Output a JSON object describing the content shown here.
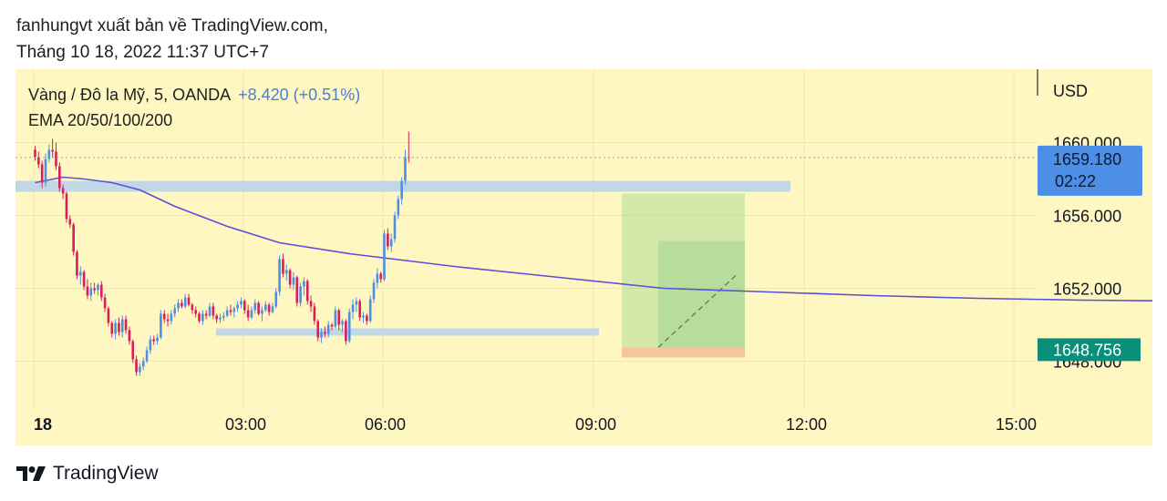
{
  "header": {
    "publisher_line": "fanhungvt xuất bản về TradingView.com,",
    "date_line": "Tháng 10 18, 2022 11:37 UTC+7"
  },
  "legend": {
    "symbol_line": "Vàng / Đô la Mỹ, 5, OANDA",
    "change": "+8.420 (+0.51%)",
    "indicator": "EMA 20/50/100/200"
  },
  "footer": {
    "brand": "TradingView"
  },
  "colors": {
    "background": "#fff7c2",
    "up": "#4d8fe6",
    "down": "#d81e5b",
    "ema": "#5b4fd6",
    "zone": "#b9d3ea",
    "price_tag": "#4d8fe6",
    "last_tag": "#0a8f7a",
    "target": "#9fd48f",
    "stop": "#f6c29a"
  },
  "chart_data": {
    "type": "candlestick",
    "symbol": "Vàng / Đô la Mỹ",
    "interval": "5",
    "currency": "USD",
    "x_tick_labels": [
      "18",
      "03:00",
      "06:00",
      "09:00",
      "12:00",
      "15:00"
    ],
    "y_tick_labels": [
      "1660.000",
      "1656.000",
      "1652.000",
      "1648.000"
    ],
    "ylim": [
      1644.5,
      1663.5
    ],
    "price_labels": {
      "current": "1659.180",
      "countdown": "02:22",
      "marker": "1648.756"
    },
    "candles_5m_from_00_00": [
      [
        1659.6,
        1659.8,
        1659.0,
        1659.2
      ],
      [
        1659.2,
        1659.5,
        1658.6,
        1658.8
      ],
      [
        1658.8,
        1659.0,
        1657.5,
        1657.8
      ],
      [
        1657.8,
        1659.4,
        1657.6,
        1659.1
      ],
      [
        1659.1,
        1659.9,
        1658.9,
        1659.6
      ],
      [
        1659.6,
        1660.2,
        1659.2,
        1659.5
      ],
      [
        1659.5,
        1660.0,
        1658.5,
        1658.7
      ],
      [
        1658.7,
        1658.9,
        1657.3,
        1657.5
      ],
      [
        1657.5,
        1657.7,
        1656.9,
        1657.2
      ],
      [
        1657.2,
        1657.3,
        1655.6,
        1655.8
      ],
      [
        1655.8,
        1656.0,
        1655.3,
        1655.5
      ],
      [
        1655.5,
        1655.6,
        1653.8,
        1654.0
      ],
      [
        1654.0,
        1654.1,
        1652.5,
        1652.7
      ],
      [
        1652.7,
        1653.2,
        1652.2,
        1652.9
      ],
      [
        1652.9,
        1653.0,
        1651.9,
        1652.1
      ],
      [
        1652.1,
        1652.5,
        1651.4,
        1651.6
      ],
      [
        1651.6,
        1652.3,
        1651.3,
        1652.0
      ],
      [
        1652.0,
        1652.3,
        1651.7,
        1651.9
      ],
      [
        1651.9,
        1652.3,
        1651.6,
        1652.2
      ],
      [
        1652.2,
        1652.4,
        1651.3,
        1651.5
      ],
      [
        1651.5,
        1651.7,
        1650.7,
        1650.9
      ],
      [
        1650.9,
        1651.0,
        1649.9,
        1650.1
      ],
      [
        1650.1,
        1650.2,
        1649.3,
        1649.5
      ],
      [
        1649.5,
        1650.3,
        1649.2,
        1650.1
      ],
      [
        1650.1,
        1650.4,
        1649.4,
        1649.6
      ],
      [
        1649.6,
        1650.5,
        1649.3,
        1650.3
      ],
      [
        1650.3,
        1650.5,
        1649.5,
        1649.7
      ],
      [
        1649.7,
        1649.9,
        1648.9,
        1649.1
      ],
      [
        1649.1,
        1649.2,
        1647.9,
        1648.1
      ],
      [
        1648.1,
        1648.3,
        1647.2,
        1647.4
      ],
      [
        1647.4,
        1647.9,
        1647.2,
        1647.7
      ],
      [
        1647.7,
        1648.2,
        1647.5,
        1648.0
      ],
      [
        1648.0,
        1648.8,
        1647.9,
        1648.6
      ],
      [
        1648.6,
        1649.4,
        1648.4,
        1649.2
      ],
      [
        1649.2,
        1649.4,
        1648.9,
        1649.1
      ],
      [
        1649.1,
        1649.5,
        1648.9,
        1649.3
      ],
      [
        1649.3,
        1650.8,
        1649.2,
        1650.6
      ],
      [
        1650.6,
        1650.8,
        1650.1,
        1650.3
      ],
      [
        1650.3,
        1650.6,
        1649.9,
        1650.2
      ],
      [
        1650.2,
        1650.8,
        1650.0,
        1650.6
      ],
      [
        1650.6,
        1651.1,
        1650.4,
        1650.9
      ],
      [
        1650.9,
        1651.4,
        1650.7,
        1651.2
      ],
      [
        1651.2,
        1651.4,
        1650.9,
        1651.0
      ],
      [
        1651.0,
        1651.7,
        1650.9,
        1651.5
      ],
      [
        1651.5,
        1651.7,
        1651.0,
        1651.1
      ],
      [
        1651.1,
        1651.2,
        1650.6,
        1650.8
      ],
      [
        1650.8,
        1651.0,
        1650.4,
        1650.6
      ],
      [
        1650.6,
        1650.7,
        1650.1,
        1650.2
      ],
      [
        1650.2,
        1650.8,
        1650.0,
        1650.6
      ],
      [
        1650.6,
        1650.8,
        1650.3,
        1650.5
      ],
      [
        1650.5,
        1651.2,
        1650.4,
        1651.0
      ],
      [
        1651.0,
        1651.2,
        1650.3,
        1650.5
      ],
      [
        1650.5,
        1650.6,
        1650.1,
        1650.3
      ],
      [
        1650.3,
        1650.6,
        1650.1,
        1650.4
      ],
      [
        1650.4,
        1650.7,
        1650.2,
        1650.5
      ],
      [
        1650.5,
        1651.0,
        1650.4,
        1650.8
      ],
      [
        1650.8,
        1651.1,
        1650.5,
        1650.7
      ],
      [
        1650.7,
        1651.0,
        1650.4,
        1650.9
      ],
      [
        1650.9,
        1651.3,
        1650.7,
        1651.1
      ],
      [
        1651.1,
        1651.5,
        1650.9,
        1651.3
      ],
      [
        1651.3,
        1651.4,
        1650.6,
        1650.8
      ],
      [
        1650.8,
        1651.1,
        1650.2,
        1650.4
      ],
      [
        1650.4,
        1651.0,
        1650.3,
        1650.8
      ],
      [
        1650.8,
        1651.4,
        1650.6,
        1651.2
      ],
      [
        1651.2,
        1651.3,
        1650.5,
        1650.6
      ],
      [
        1650.6,
        1651.0,
        1650.2,
        1650.8
      ],
      [
        1650.8,
        1651.3,
        1650.7,
        1651.1
      ],
      [
        1651.1,
        1651.2,
        1650.5,
        1650.7
      ],
      [
        1650.7,
        1651.2,
        1650.6,
        1651.0
      ],
      [
        1651.0,
        1652.0,
        1650.9,
        1651.8
      ],
      [
        1651.8,
        1653.8,
        1651.6,
        1653.6
      ],
      [
        1653.6,
        1653.9,
        1652.6,
        1652.8
      ],
      [
        1652.8,
        1653.3,
        1652.4,
        1653.0
      ],
      [
        1653.0,
        1653.1,
        1652.0,
        1652.2
      ],
      [
        1652.2,
        1652.9,
        1651.9,
        1652.6
      ],
      [
        1652.6,
        1652.7,
        1651.0,
        1651.2
      ],
      [
        1651.2,
        1652.3,
        1651.0,
        1652.1
      ],
      [
        1652.1,
        1652.6,
        1651.6,
        1652.4
      ],
      [
        1652.4,
        1652.5,
        1651.1,
        1651.3
      ],
      [
        1651.3,
        1651.6,
        1650.7,
        1651.0
      ],
      [
        1651.0,
        1651.2,
        1650.0,
        1650.2
      ],
      [
        1650.2,
        1650.3,
        1649.1,
        1649.3
      ],
      [
        1649.3,
        1649.8,
        1649.0,
        1649.6
      ],
      [
        1649.6,
        1649.9,
        1649.3,
        1649.5
      ],
      [
        1649.5,
        1650.2,
        1649.3,
        1650.0
      ],
      [
        1650.0,
        1650.1,
        1649.7,
        1649.9
      ],
      [
        1649.9,
        1651.0,
        1649.8,
        1650.8
      ],
      [
        1650.8,
        1650.9,
        1649.7,
        1650.0
      ],
      [
        1650.0,
        1650.3,
        1649.6,
        1650.2
      ],
      [
        1650.2,
        1650.3,
        1648.9,
        1649.1
      ],
      [
        1649.1,
        1650.9,
        1649.0,
        1650.7
      ],
      [
        1650.7,
        1651.4,
        1650.3,
        1651.1
      ],
      [
        1651.1,
        1651.5,
        1650.7,
        1651.3
      ],
      [
        1651.3,
        1651.4,
        1650.2,
        1650.4
      ],
      [
        1650.4,
        1650.7,
        1650.1,
        1650.5
      ],
      [
        1650.5,
        1650.6,
        1650.0,
        1650.2
      ],
      [
        1650.2,
        1651.6,
        1650.1,
        1651.4
      ],
      [
        1651.4,
        1652.5,
        1651.2,
        1652.3
      ],
      [
        1652.3,
        1653.1,
        1652.0,
        1652.8
      ],
      [
        1652.8,
        1652.9,
        1652.3,
        1652.5
      ],
      [
        1652.5,
        1655.2,
        1652.4,
        1655.0
      ],
      [
        1655.0,
        1655.3,
        1654.1,
        1654.3
      ],
      [
        1654.3,
        1655.0,
        1654.0,
        1654.7
      ],
      [
        1654.7,
        1656.2,
        1654.5,
        1656.0
      ],
      [
        1656.0,
        1657.1,
        1655.8,
        1656.9
      ],
      [
        1656.9,
        1658.1,
        1656.6,
        1657.9
      ],
      [
        1657.9,
        1659.6,
        1657.7,
        1659.2
      ],
      [
        1659.2,
        1660.6,
        1658.9,
        1659.18
      ]
    ],
    "ema": [
      [
        0,
        1657.8
      ],
      [
        8,
        1658.1
      ],
      [
        14,
        1658.0
      ],
      [
        22,
        1657.8
      ],
      [
        30,
        1657.4
      ],
      [
        40,
        1656.5
      ],
      [
        55,
        1655.4
      ],
      [
        70,
        1654.5
      ],
      [
        90,
        1653.9
      ],
      [
        120,
        1653.2
      ],
      [
        150,
        1652.6
      ],
      [
        180,
        1652.0
      ],
      [
        210,
        1651.8
      ],
      [
        240,
        1651.6
      ],
      [
        270,
        1651.45
      ],
      [
        300,
        1651.35
      ],
      [
        330,
        1651.3
      ],
      [
        360,
        1651.3
      ],
      [
        390,
        1651.25
      ]
    ],
    "zones": [
      {
        "y": [
          1657.3,
          1657.9
        ]
      },
      {
        "y": [
          1649.4,
          1649.8
        ]
      }
    ],
    "position_box": {
      "entry": 1648.756,
      "target": 1657.2,
      "stop": 1648.2,
      "inner_top": 1654.6,
      "inner_bottom": 1648.756
    }
  }
}
